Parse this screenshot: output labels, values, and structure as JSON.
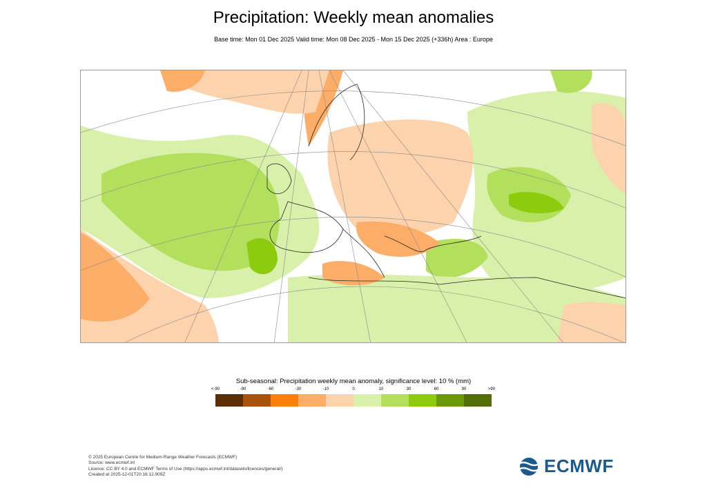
{
  "title": "Precipitation: Weekly mean anomalies",
  "subtitle": "Base time: Mon 01 Dec 2025 Valid time: Mon 08 Dec 2025 - Mon 15 Dec 2025 (+336h) Area : Europe",
  "legend": {
    "title": "Sub-seasonal: Precipitation weekly mean anomaly, significance level: 10 % (mm)",
    "ticks": [
      "<-90",
      "-90",
      "-60",
      "-30",
      "-10",
      "0",
      "10",
      "30",
      "60",
      "90",
      ">90"
    ],
    "colors": [
      "#5c2e06",
      "#a9520e",
      "#fa800b",
      "#fcae69",
      "#fdd3ad",
      "#d9f0aa",
      "#b3e05c",
      "#8ccb0d",
      "#6a9a0a",
      "#516e0a"
    ]
  },
  "footer": {
    "lines": [
      "© 2025 European Centre for Medium-Range Weather Forecasts (ECMWF)",
      "Source: www.ecmwf.int",
      "Licence: CC BY 4.0 and ECMWF Terms of Use (https://apps.ecmwf.int/datasets/licences/general/)",
      "Created at 2025-12-01T20:16:12.909Z"
    ]
  },
  "logo": {
    "text": "ECMWF",
    "color": "#1b5a8c"
  }
}
